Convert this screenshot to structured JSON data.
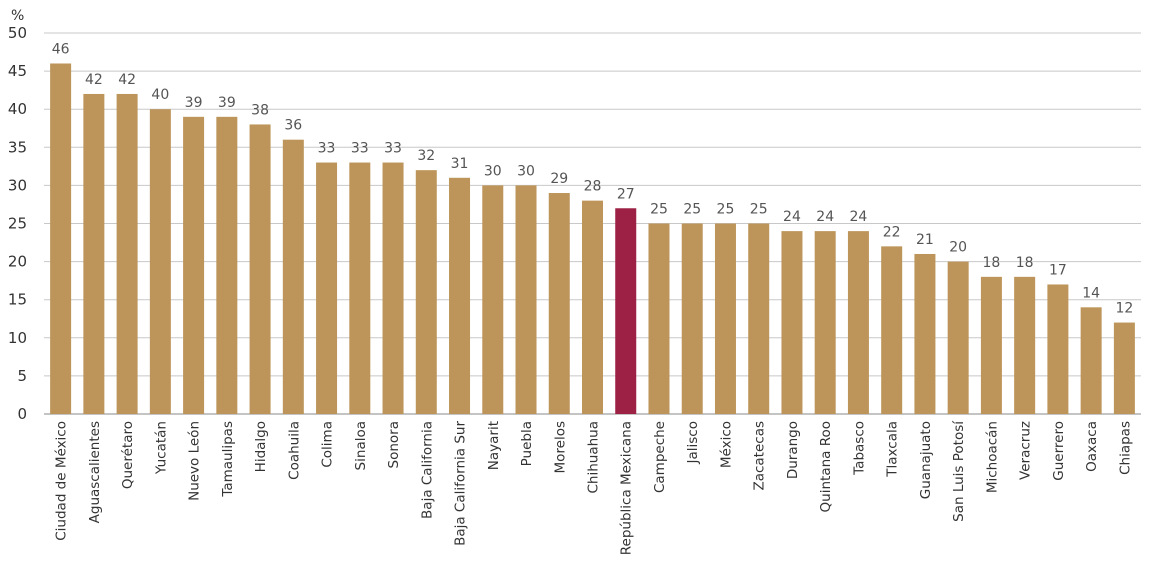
{
  "chart_data": {
    "type": "bar",
    "ylabel": "%",
    "ylim": [
      0,
      50
    ],
    "yticks": [
      0,
      5,
      10,
      15,
      20,
      25,
      30,
      35,
      40,
      45,
      50
    ],
    "grid": true,
    "categories": [
      "Ciudad de México",
      "Aguascalientes",
      "Querétaro",
      "Yucatán",
      "Nuevo León",
      "Tamaulipas",
      "Hidalgo",
      "Coahuila",
      "Colima",
      "Sinaloa",
      "Sonora",
      "Baja California",
      "Baja California Sur",
      "Nayarit",
      "Puebla",
      "Morelos",
      "Chihuahua",
      "República Mexicana",
      "Campeche",
      "Jalisco",
      "México",
      "Zacatecas",
      "Durango",
      "Quintana Roo",
      "Tabasco",
      "Tlaxcala",
      "Guanajuato",
      "San Luis Potosí",
      "Michoacán",
      "Veracruz",
      "Guerrero",
      "Oaxaca",
      "Chiapas"
    ],
    "values": [
      46,
      42,
      42,
      40,
      39,
      39,
      38,
      36,
      33,
      33,
      33,
      32,
      31,
      30,
      30,
      29,
      28,
      27,
      25,
      25,
      25,
      25,
      24,
      24,
      24,
      22,
      21,
      20,
      18,
      18,
      17,
      14,
      12
    ],
    "highlight_category": "República Mexicana",
    "colors": {
      "bar": "#BD955A",
      "highlight": "#9C2145",
      "grid": "#c8c8c8",
      "axis": "#888888"
    }
  }
}
